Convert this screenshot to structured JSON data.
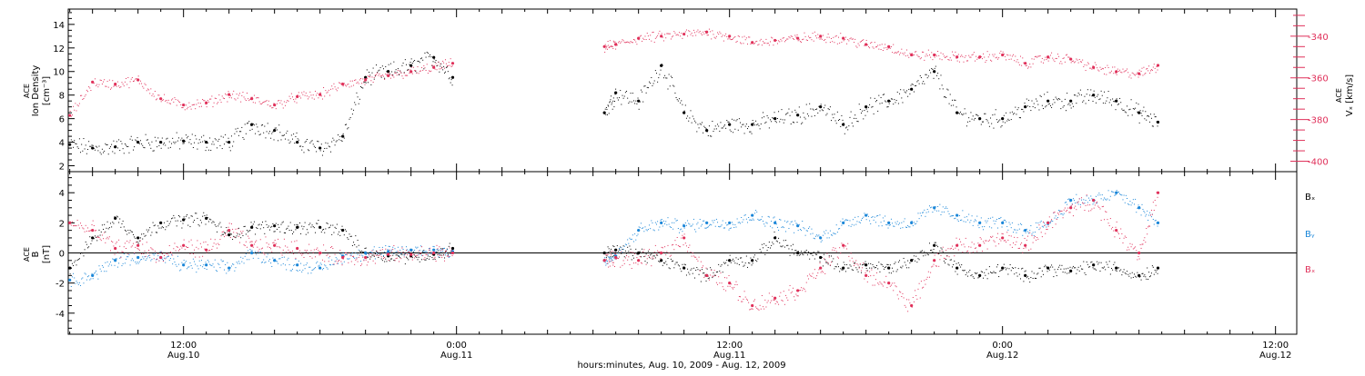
{
  "colors": {
    "density": "#000000",
    "velocity": "#e0305a",
    "bx": "#000000",
    "by": "#1a86d8",
    "bz": "#e0305a",
    "axis": "#000000"
  },
  "x_axis": {
    "label": "hours:minutes, Aug. 10, 2009 - Aug. 12, 2009",
    "ticks": [
      {
        "time": "2009-08-10T12:00",
        "time_label": "12:00",
        "date_label": "Aug.10"
      },
      {
        "time": "2009-08-11T00:00",
        "time_label": "0:00",
        "date_label": "Aug.11"
      },
      {
        "time": "2009-08-11T12:00",
        "time_label": "12:00",
        "date_label": "Aug.11"
      },
      {
        "time": "2009-08-12T00:00",
        "time_label": "0:00",
        "date_label": "Aug.12"
      },
      {
        "time": "2009-08-12T12:00",
        "time_label": "12:00",
        "date_label": "Aug.12"
      }
    ]
  },
  "panel1": {
    "ylabel_left": [
      "ACE",
      "Ion Density",
      "[cm⁻³]"
    ],
    "ylabel_right": [
      "ACE",
      "Vₓ [km/s]"
    ],
    "left_ticks": [
      "2",
      "4",
      "6",
      "8",
      "10",
      "12",
      "14"
    ],
    "right_ticks": [
      "-340",
      "-360",
      "-380",
      "-400"
    ]
  },
  "panel2": {
    "ylabel_left": [
      "ACE",
      "B",
      "[nT]"
    ],
    "left_ticks": [
      "4",
      "2",
      "0",
      "-2",
      "-4"
    ],
    "legend": [
      "Bₓ",
      "Bᵧ",
      "Bₓ"
    ]
  },
  "chart_data": [
    {
      "type": "scatter",
      "panel": "top",
      "x_range": [
        "2009-08-10T06:56",
        "2009-08-12T12:56"
      ],
      "y_left_range": [
        1.5,
        15.3
      ],
      "y_right_range": [
        -405,
        -327
      ],
      "series": [
        {
          "name": "",
          "axis": "left",
          "note": "Ion Density (cm^-3), black",
          "x": [
            "2009-08-10T07:00",
            "2009-08-10T08:00",
            "2009-08-10T09:00",
            "2009-08-10T10:00",
            "2009-08-10T11:00",
            "2009-08-10T12:00",
            "2009-08-10T13:00",
            "2009-08-10T14:00",
            "2009-08-10T15:00",
            "2009-08-10T16:00",
            "2009-08-10T17:00",
            "2009-08-10T18:00",
            "2009-08-10T19:00",
            "2009-08-10T20:00",
            "2009-08-10T21:00",
            "2009-08-10T22:00",
            "2009-08-10T23:00",
            "2009-08-10T23:50",
            "2009-08-11T06:30",
            "2009-08-11T07:00",
            "2009-08-11T08:00",
            "2009-08-11T09:00",
            "2009-08-11T10:00",
            "2009-08-11T11:00",
            "2009-08-11T12:00",
            "2009-08-11T13:00",
            "2009-08-11T14:00",
            "2009-08-11T15:00",
            "2009-08-11T16:00",
            "2009-08-11T17:00",
            "2009-08-11T18:00",
            "2009-08-11T19:00",
            "2009-08-11T20:00",
            "2009-08-11T21:00",
            "2009-08-11T22:00",
            "2009-08-11T23:00",
            "2009-08-12T00:00",
            "2009-08-12T01:00",
            "2009-08-12T02:00",
            "2009-08-12T03:00",
            "2009-08-12T04:00",
            "2009-08-12T05:00",
            "2009-08-12T06:00",
            "2009-08-12T06:50"
          ],
          "values": [
            3.8,
            3.5,
            3.6,
            4.0,
            4.0,
            4.1,
            4.0,
            4.0,
            5.5,
            5.0,
            4.0,
            3.5,
            4.5,
            9.5,
            10.0,
            10.5,
            11.2,
            9.5,
            6.5,
            8.2,
            7.5,
            10.5,
            6.5,
            5.0,
            5.5,
            5.5,
            6.0,
            6.3,
            7.0,
            5.5,
            7.0,
            7.5,
            8.5,
            10.0,
            6.5,
            6.0,
            6.0,
            7.0,
            7.5,
            7.5,
            8.0,
            7.5,
            6.5,
            5.7
          ]
        },
        {
          "name": "",
          "axis": "right",
          "note": "V_x (km/s), red",
          "x": [
            "2009-08-10T07:00",
            "2009-08-10T08:00",
            "2009-08-10T09:00",
            "2009-08-10T10:00",
            "2009-08-10T11:00",
            "2009-08-10T12:00",
            "2009-08-10T13:00",
            "2009-08-10T14:00",
            "2009-08-10T15:00",
            "2009-08-10T16:00",
            "2009-08-10T17:00",
            "2009-08-10T18:00",
            "2009-08-10T19:00",
            "2009-08-10T20:00",
            "2009-08-10T21:00",
            "2009-08-10T22:00",
            "2009-08-10T23:00",
            "2009-08-10T23:50",
            "2009-08-11T06:30",
            "2009-08-11T07:00",
            "2009-08-11T08:00",
            "2009-08-11T09:00",
            "2009-08-11T10:00",
            "2009-08-11T11:00",
            "2009-08-11T12:00",
            "2009-08-11T13:00",
            "2009-08-11T14:00",
            "2009-08-11T15:00",
            "2009-08-11T16:00",
            "2009-08-11T17:00",
            "2009-08-11T18:00",
            "2009-08-11T19:00",
            "2009-08-11T20:00",
            "2009-08-11T21:00",
            "2009-08-11T22:00",
            "2009-08-11T23:00",
            "2009-08-12T00:00",
            "2009-08-12T01:00",
            "2009-08-12T02:00",
            "2009-08-12T03:00",
            "2009-08-12T04:00",
            "2009-08-12T05:00",
            "2009-08-12T06:00",
            "2009-08-12T06:50"
          ],
          "values": [
            -378,
            -362,
            -363,
            -361,
            -370,
            -373,
            -372,
            -368,
            -370,
            -373,
            -369,
            -368,
            -363,
            -361,
            -359,
            -357,
            -355,
            -353,
            -345,
            -344,
            -341,
            -340,
            -339,
            -338,
            -340,
            -343,
            -342,
            -341,
            -340,
            -341,
            -344,
            -345,
            -349,
            -349,
            -350,
            -350,
            -349,
            -353,
            -350,
            -351,
            -355,
            -357,
            -358,
            -354
          ]
        }
      ]
    },
    {
      "type": "scatter",
      "panel": "bottom",
      "x_range": [
        "2009-08-10T06:56",
        "2009-08-12T12:56"
      ],
      "y_range": [
        -5.4,
        5.4
      ],
      "zero_line": true,
      "series": [
        {
          "name": "Bₓ",
          "x": [
            "2009-08-10T07:00",
            "2009-08-10T08:00",
            "2009-08-10T09:00",
            "2009-08-10T10:00",
            "2009-08-10T11:00",
            "2009-08-10T12:00",
            "2009-08-10T13:00",
            "2009-08-10T14:00",
            "2009-08-10T15:00",
            "2009-08-10T16:00",
            "2009-08-10T17:00",
            "2009-08-10T18:00",
            "2009-08-10T19:00",
            "2009-08-10T20:00",
            "2009-08-10T21:00",
            "2009-08-10T22:00",
            "2009-08-10T23:00",
            "2009-08-10T23:50",
            "2009-08-11T06:30",
            "2009-08-11T07:00",
            "2009-08-11T08:00",
            "2009-08-11T09:00",
            "2009-08-11T10:00",
            "2009-08-11T11:00",
            "2009-08-11T12:00",
            "2009-08-11T13:00",
            "2009-08-11T14:00",
            "2009-08-11T15:00",
            "2009-08-11T16:00",
            "2009-08-11T17:00",
            "2009-08-11T18:00",
            "2009-08-11T19:00",
            "2009-08-11T20:00",
            "2009-08-11T21:00",
            "2009-08-11T22:00",
            "2009-08-11T23:00",
            "2009-08-12T00:00",
            "2009-08-12T01:00",
            "2009-08-12T02:00",
            "2009-08-12T03:00",
            "2009-08-12T04:00",
            "2009-08-12T05:00",
            "2009-08-12T06:00",
            "2009-08-12T06:50"
          ],
          "values": [
            -1.0,
            1.0,
            2.3,
            1.0,
            2.0,
            2.2,
            2.3,
            1.2,
            1.7,
            1.8,
            1.7,
            1.7,
            1.5,
            0.0,
            -0.2,
            -0.2,
            -0.1,
            0.3,
            0.0,
            0.2,
            0.0,
            -0.5,
            -1.0,
            -1.5,
            -0.5,
            -0.5,
            1.0,
            0.0,
            -0.3,
            -1.0,
            -0.8,
            -1.0,
            -0.5,
            0.5,
            -1.0,
            -1.5,
            -1.0,
            -1.5,
            -1.0,
            -1.2,
            -0.8,
            -1.0,
            -1.5,
            -1.0
          ]
        },
        {
          "name": "Bᵧ",
          "x": [
            "2009-08-10T07:00",
            "2009-08-10T08:00",
            "2009-08-10T09:00",
            "2009-08-10T10:00",
            "2009-08-10T11:00",
            "2009-08-10T12:00",
            "2009-08-10T13:00",
            "2009-08-10T14:00",
            "2009-08-10T15:00",
            "2009-08-10T16:00",
            "2009-08-10T17:00",
            "2009-08-10T18:00",
            "2009-08-10T19:00",
            "2009-08-10T20:00",
            "2009-08-10T21:00",
            "2009-08-10T22:00",
            "2009-08-10T23:00",
            "2009-08-10T23:50",
            "2009-08-11T06:30",
            "2009-08-11T07:00",
            "2009-08-11T08:00",
            "2009-08-11T09:00",
            "2009-08-11T10:00",
            "2009-08-11T11:00",
            "2009-08-11T12:00",
            "2009-08-11T13:00",
            "2009-08-11T14:00",
            "2009-08-11T15:00",
            "2009-08-11T16:00",
            "2009-08-11T17:00",
            "2009-08-11T18:00",
            "2009-08-11T19:00",
            "2009-08-11T20:00",
            "2009-08-11T21:00",
            "2009-08-11T22:00",
            "2009-08-11T23:00",
            "2009-08-12T00:00",
            "2009-08-12T01:00",
            "2009-08-12T02:00",
            "2009-08-12T03:00",
            "2009-08-12T04:00",
            "2009-08-12T05:00",
            "2009-08-12T06:00",
            "2009-08-12T06:50"
          ],
          "values": [
            -1.8,
            -1.5,
            -0.5,
            -0.3,
            -0.3,
            -0.8,
            -0.8,
            -1.0,
            0.0,
            -0.5,
            -0.8,
            -1.0,
            -0.2,
            0.0,
            0.1,
            0.2,
            0.2,
            0.1,
            -0.5,
            -0.2,
            1.5,
            2.0,
            1.8,
            2.0,
            2.0,
            2.5,
            2.0,
            1.8,
            1.0,
            2.0,
            2.5,
            2.0,
            2.0,
            3.0,
            2.5,
            2.0,
            2.0,
            1.5,
            2.0,
            3.5,
            3.5,
            4.0,
            3.0,
            2.0
          ]
        },
        {
          "name": "Bₓ",
          "x": [
            "2009-08-10T07:00",
            "2009-08-10T08:00",
            "2009-08-10T09:00",
            "2009-08-10T10:00",
            "2009-08-10T11:00",
            "2009-08-10T12:00",
            "2009-08-10T13:00",
            "2009-08-10T14:00",
            "2009-08-10T15:00",
            "2009-08-10T16:00",
            "2009-08-10T17:00",
            "2009-08-10T18:00",
            "2009-08-10T19:00",
            "2009-08-10T20:00",
            "2009-08-10T21:00",
            "2009-08-10T22:00",
            "2009-08-10T23:00",
            "2009-08-10T23:50",
            "2009-08-11T06:30",
            "2009-08-11T07:00",
            "2009-08-11T08:00",
            "2009-08-11T09:00",
            "2009-08-11T10:00",
            "2009-08-11T11:00",
            "2009-08-11T12:00",
            "2009-08-11T13:00",
            "2009-08-11T14:00",
            "2009-08-11T15:00",
            "2009-08-11T16:00",
            "2009-08-11T17:00",
            "2009-08-11T18:00",
            "2009-08-11T19:00",
            "2009-08-11T20:00",
            "2009-08-11T21:00",
            "2009-08-11T22:00",
            "2009-08-11T23:00",
            "2009-08-12T00:00",
            "2009-08-12T01:00",
            "2009-08-12T02:00",
            "2009-08-12T03:00",
            "2009-08-12T04:00",
            "2009-08-12T05:00",
            "2009-08-12T06:00",
            "2009-08-12T06:50"
          ],
          "values": [
            2.0,
            1.5,
            0.3,
            0.5,
            -0.3,
            0.5,
            0.2,
            1.5,
            0.5,
            0.5,
            0.3,
            0.0,
            -0.3,
            -0.3,
            -0.1,
            -0.1,
            0.0,
            0.0,
            -0.5,
            -0.3,
            -0.5,
            0.0,
            1.0,
            -1.5,
            -2.0,
            -3.5,
            -3.0,
            -2.5,
            -1.0,
            0.5,
            -1.5,
            -2.0,
            -3.5,
            -0.5,
            0.5,
            0.5,
            1.0,
            0.5,
            2.0,
            3.0,
            3.5,
            1.5,
            0.0,
            4.0
          ]
        }
      ]
    }
  ]
}
